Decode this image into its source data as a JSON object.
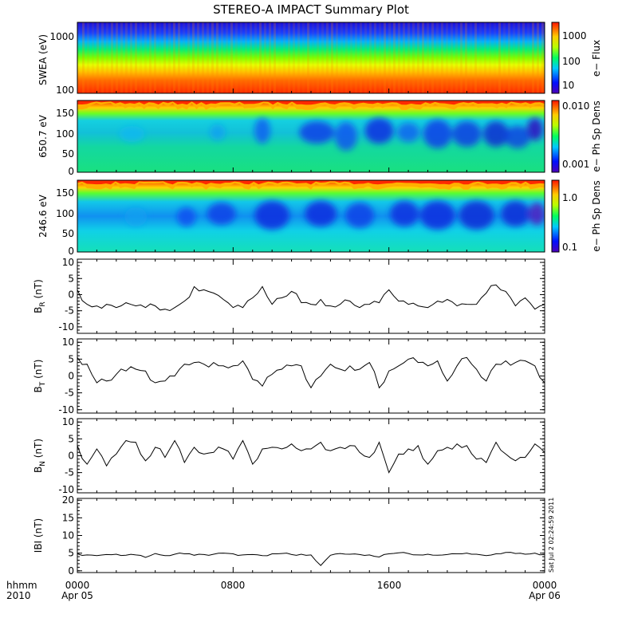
{
  "title": "STEREO-A IMPACT Summary Plot",
  "timestamp": "Sat Jul  2 02:24:59 2011",
  "time_axis": {
    "row1": [
      "hhmm",
      "0000",
      "0800",
      "1600",
      "0000"
    ],
    "row2": [
      "2010",
      "Apr 05",
      "",
      "",
      "Apr 06"
    ]
  },
  "colors": {
    "line": "#000000",
    "background": "#ffffff"
  },
  "chart_data": [
    {
      "type": "heatmap",
      "ylabel": "SWEA (eV)",
      "ylog": true,
      "yticks": [
        "1000",
        "100"
      ],
      "colorbar": {
        "label": "e− Flux",
        "ticks": [
          "1000",
          "100",
          "10"
        ],
        "log": true
      },
      "description": "Electron energy spectrogram, rainbow colour table"
    },
    {
      "type": "heatmap",
      "ylabel": "650.7 eV",
      "yrange": [
        0,
        180
      ],
      "yticks": [
        "150",
        "100",
        "50",
        "0"
      ],
      "colorbar": {
        "label": "e− Ph Sp Dens",
        "ticks": [
          "0.010",
          "0.001"
        ],
        "log": true
      }
    },
    {
      "type": "heatmap",
      "ylabel": "246.6 eV",
      "yrange": [
        0,
        180
      ],
      "yticks": [
        "150",
        "100",
        "50",
        "0"
      ],
      "colorbar": {
        "label": "e− Ph Sp Dens",
        "ticks": [
          "1.0",
          "0.1"
        ],
        "log": true
      }
    },
    {
      "type": "line",
      "ylabel": "B",
      "ylabel_sub": "R",
      "ylabel_unit": " (nT)",
      "yrange": [
        -12,
        11
      ],
      "yticks": [
        "10",
        "5",
        "0",
        "-5",
        "-10"
      ],
      "key": "BR",
      "x": [
        0,
        0.5,
        1,
        1.5,
        2,
        2.5,
        3,
        3.5,
        4,
        4.5,
        5,
        5.5,
        6,
        6.5,
        7,
        7.5,
        8,
        8.5,
        9,
        9.5,
        10,
        10.5,
        11,
        11.5,
        12,
        12.5,
        13,
        13.5,
        14,
        14.5,
        15,
        15.5,
        16,
        16.5,
        17,
        17.5,
        18,
        18.5,
        19,
        19.5,
        20,
        20.5,
        21,
        21.5,
        22,
        22.5,
        23,
        23.5,
        24
      ],
      "values": [
        1.5,
        -3.0,
        -3.5,
        -3.0,
        -4.0,
        -2.5,
        -3.5,
        -4.0,
        -3.5,
        -4.5,
        -4.0,
        -2.0,
        2.5,
        1.5,
        0.5,
        -1.5,
        -4.0,
        -4.0,
        -1.0,
        2.5,
        -3.0,
        -1.0,
        1.0,
        -2.5,
        -3.0,
        -1.5,
        -3.5,
        -3.0,
        -2.0,
        -4.0,
        -3.0,
        -2.5,
        1.5,
        -2.0,
        -3.0,
        -3.5,
        -4.0,
        -2.0,
        -1.5,
        -3.5,
        -3.0,
        -3.0,
        0.5,
        3.0,
        1.0,
        -3.5,
        -1.0,
        -4.5,
        -3.0
      ]
    },
    {
      "type": "line",
      "ylabel": "B",
      "ylabel_sub": "T",
      "ylabel_unit": " (nT)",
      "yrange": [
        -11,
        11
      ],
      "yticks": [
        "10",
        "5",
        "0",
        "-5",
        "-10"
      ],
      "key": "BT",
      "x": [
        0,
        0.5,
        1,
        1.5,
        2,
        2.5,
        3,
        3.5,
        4,
        4.5,
        5,
        5.5,
        6,
        6.5,
        7,
        7.5,
        8,
        8.5,
        9,
        9.5,
        10,
        10.5,
        11,
        11.5,
        12,
        12.5,
        13,
        13.5,
        14,
        14.5,
        15,
        15.5,
        16,
        16.5,
        17,
        17.5,
        18,
        18.5,
        19,
        19.5,
        20,
        20.5,
        21,
        21.5,
        22,
        22.5,
        23,
        23.5,
        24
      ],
      "values": [
        5.5,
        3.5,
        -2.0,
        -1.5,
        0.5,
        1.5,
        2.0,
        1.5,
        -2.0,
        -1.5,
        0.0,
        3.5,
        4.0,
        3.5,
        4.0,
        3.0,
        3.0,
        4.5,
        -1.0,
        -3.0,
        0.5,
        2.0,
        3.0,
        3.0,
        -3.5,
        0.0,
        3.5,
        2.0,
        3.0,
        2.0,
        4.0,
        -3.5,
        1.5,
        3.0,
        5.0,
        4.0,
        3.0,
        4.5,
        -1.5,
        3.0,
        5.5,
        2.0,
        -1.5,
        3.5,
        4.5,
        4.0,
        4.5,
        3.0,
        -2.0
      ]
    },
    {
      "type": "line",
      "ylabel": "B",
      "ylabel_sub": "N",
      "ylabel_unit": " (nT)",
      "yrange": [
        -11,
        11
      ],
      "yticks": [
        "10",
        "5",
        "0",
        "-5",
        "-10"
      ],
      "key": "BN",
      "x": [
        0,
        0.5,
        1,
        1.5,
        2,
        2.5,
        3,
        3.5,
        4,
        4.5,
        5,
        5.5,
        6,
        6.5,
        7,
        7.5,
        8,
        8.5,
        9,
        9.5,
        10,
        10.5,
        11,
        11.5,
        12,
        12.5,
        13,
        13.5,
        14,
        14.5,
        15,
        15.5,
        16,
        16.5,
        17,
        17.5,
        18,
        18.5,
        19,
        19.5,
        20,
        20.5,
        21,
        21.5,
        22,
        22.5,
        23,
        23.5,
        24
      ],
      "values": [
        3.0,
        -2.5,
        2.0,
        -3.0,
        0.5,
        4.5,
        4.0,
        -1.5,
        2.5,
        -0.5,
        4.5,
        -2.0,
        2.5,
        0.5,
        1.0,
        2.0,
        -1.0,
        4.5,
        -2.5,
        2.0,
        2.5,
        2.0,
        3.5,
        1.5,
        2.0,
        4.0,
        1.5,
        2.5,
        3.0,
        1.0,
        -0.5,
        4.0,
        -5.0,
        0.5,
        2.0,
        3.0,
        -2.5,
        1.5,
        2.5,
        3.5,
        3.0,
        -1.0,
        -2.0,
        4.0,
        0.5,
        -1.5,
        -0.5,
        3.5,
        1.0
      ]
    },
    {
      "type": "line",
      "ylabel": "IBI (nT)",
      "yrange": [
        -0.5,
        20.5
      ],
      "yticks": [
        "20",
        "15",
        "10",
        "5",
        "0"
      ],
      "key": "B",
      "x": [
        0,
        0.5,
        1,
        1.5,
        2,
        2.5,
        3,
        3.5,
        4,
        4.5,
        5,
        5.5,
        6,
        6.5,
        7,
        7.5,
        8,
        8.5,
        9,
        9.5,
        10,
        10.5,
        11,
        11.5,
        12,
        12.5,
        13,
        13.5,
        14,
        14.5,
        15,
        15.5,
        16,
        16.5,
        17,
        17.5,
        18,
        18.5,
        19,
        19.5,
        20,
        20.5,
        21,
        21.5,
        22,
        22.5,
        23,
        23.5,
        24
      ],
      "values": [
        4.8,
        4.5,
        4.3,
        4.6,
        4.7,
        4.4,
        4.5,
        3.8,
        4.9,
        4.3,
        4.7,
        4.8,
        4.4,
        4.6,
        4.7,
        5.0,
        4.8,
        4.5,
        4.6,
        4.3,
        4.8,
        4.9,
        4.6,
        4.7,
        4.5,
        1.5,
        4.4,
        4.9,
        4.7,
        4.6,
        4.5,
        3.9,
        4.8,
        5.1,
        4.9,
        4.5,
        4.7,
        4.4,
        4.6,
        4.8,
        5.0,
        4.7,
        4.3,
        4.8,
        5.2,
        4.9,
        4.7,
        5.0,
        4.6
      ]
    }
  ]
}
